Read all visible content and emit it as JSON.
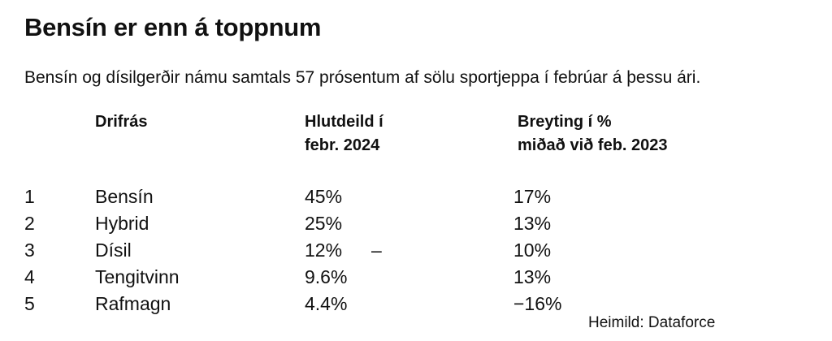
{
  "colors": {
    "background": "#ffffff",
    "text": "#111111"
  },
  "chart_data": {
    "type": "table",
    "title": "Bensín er enn á toppnum",
    "subtitle": "Bensín og dísilgerðir námu samtals 57 prósentum af sölu sportjeppa í febrúar á þessu ári.",
    "columns": {
      "drivetrain": "Drifrás",
      "share": [
        "Hlutdeild í",
        "febr. 2024"
      ],
      "change": [
        "Breyting í %",
        "miðað við feb. 2023"
      ]
    },
    "rows": [
      {
        "rank": "1",
        "drivetrain": "Bensín",
        "share": "45%",
        "note": "",
        "change": "17%"
      },
      {
        "rank": "2",
        "drivetrain": "Hybrid",
        "share": "25%",
        "note": "",
        "change": "13%"
      },
      {
        "rank": "3",
        "drivetrain": "Dísil",
        "share": "12%",
        "note": "–",
        "change": "10%"
      },
      {
        "rank": "4",
        "drivetrain": "Tengitvinn",
        "share": "9.6%",
        "note": "",
        "change": "13%"
      },
      {
        "rank": "5",
        "drivetrain": "Rafmagn",
        "share": "4.4%",
        "note": "",
        "change": "−16%"
      }
    ]
  },
  "source": "Heimild: Dataforce"
}
